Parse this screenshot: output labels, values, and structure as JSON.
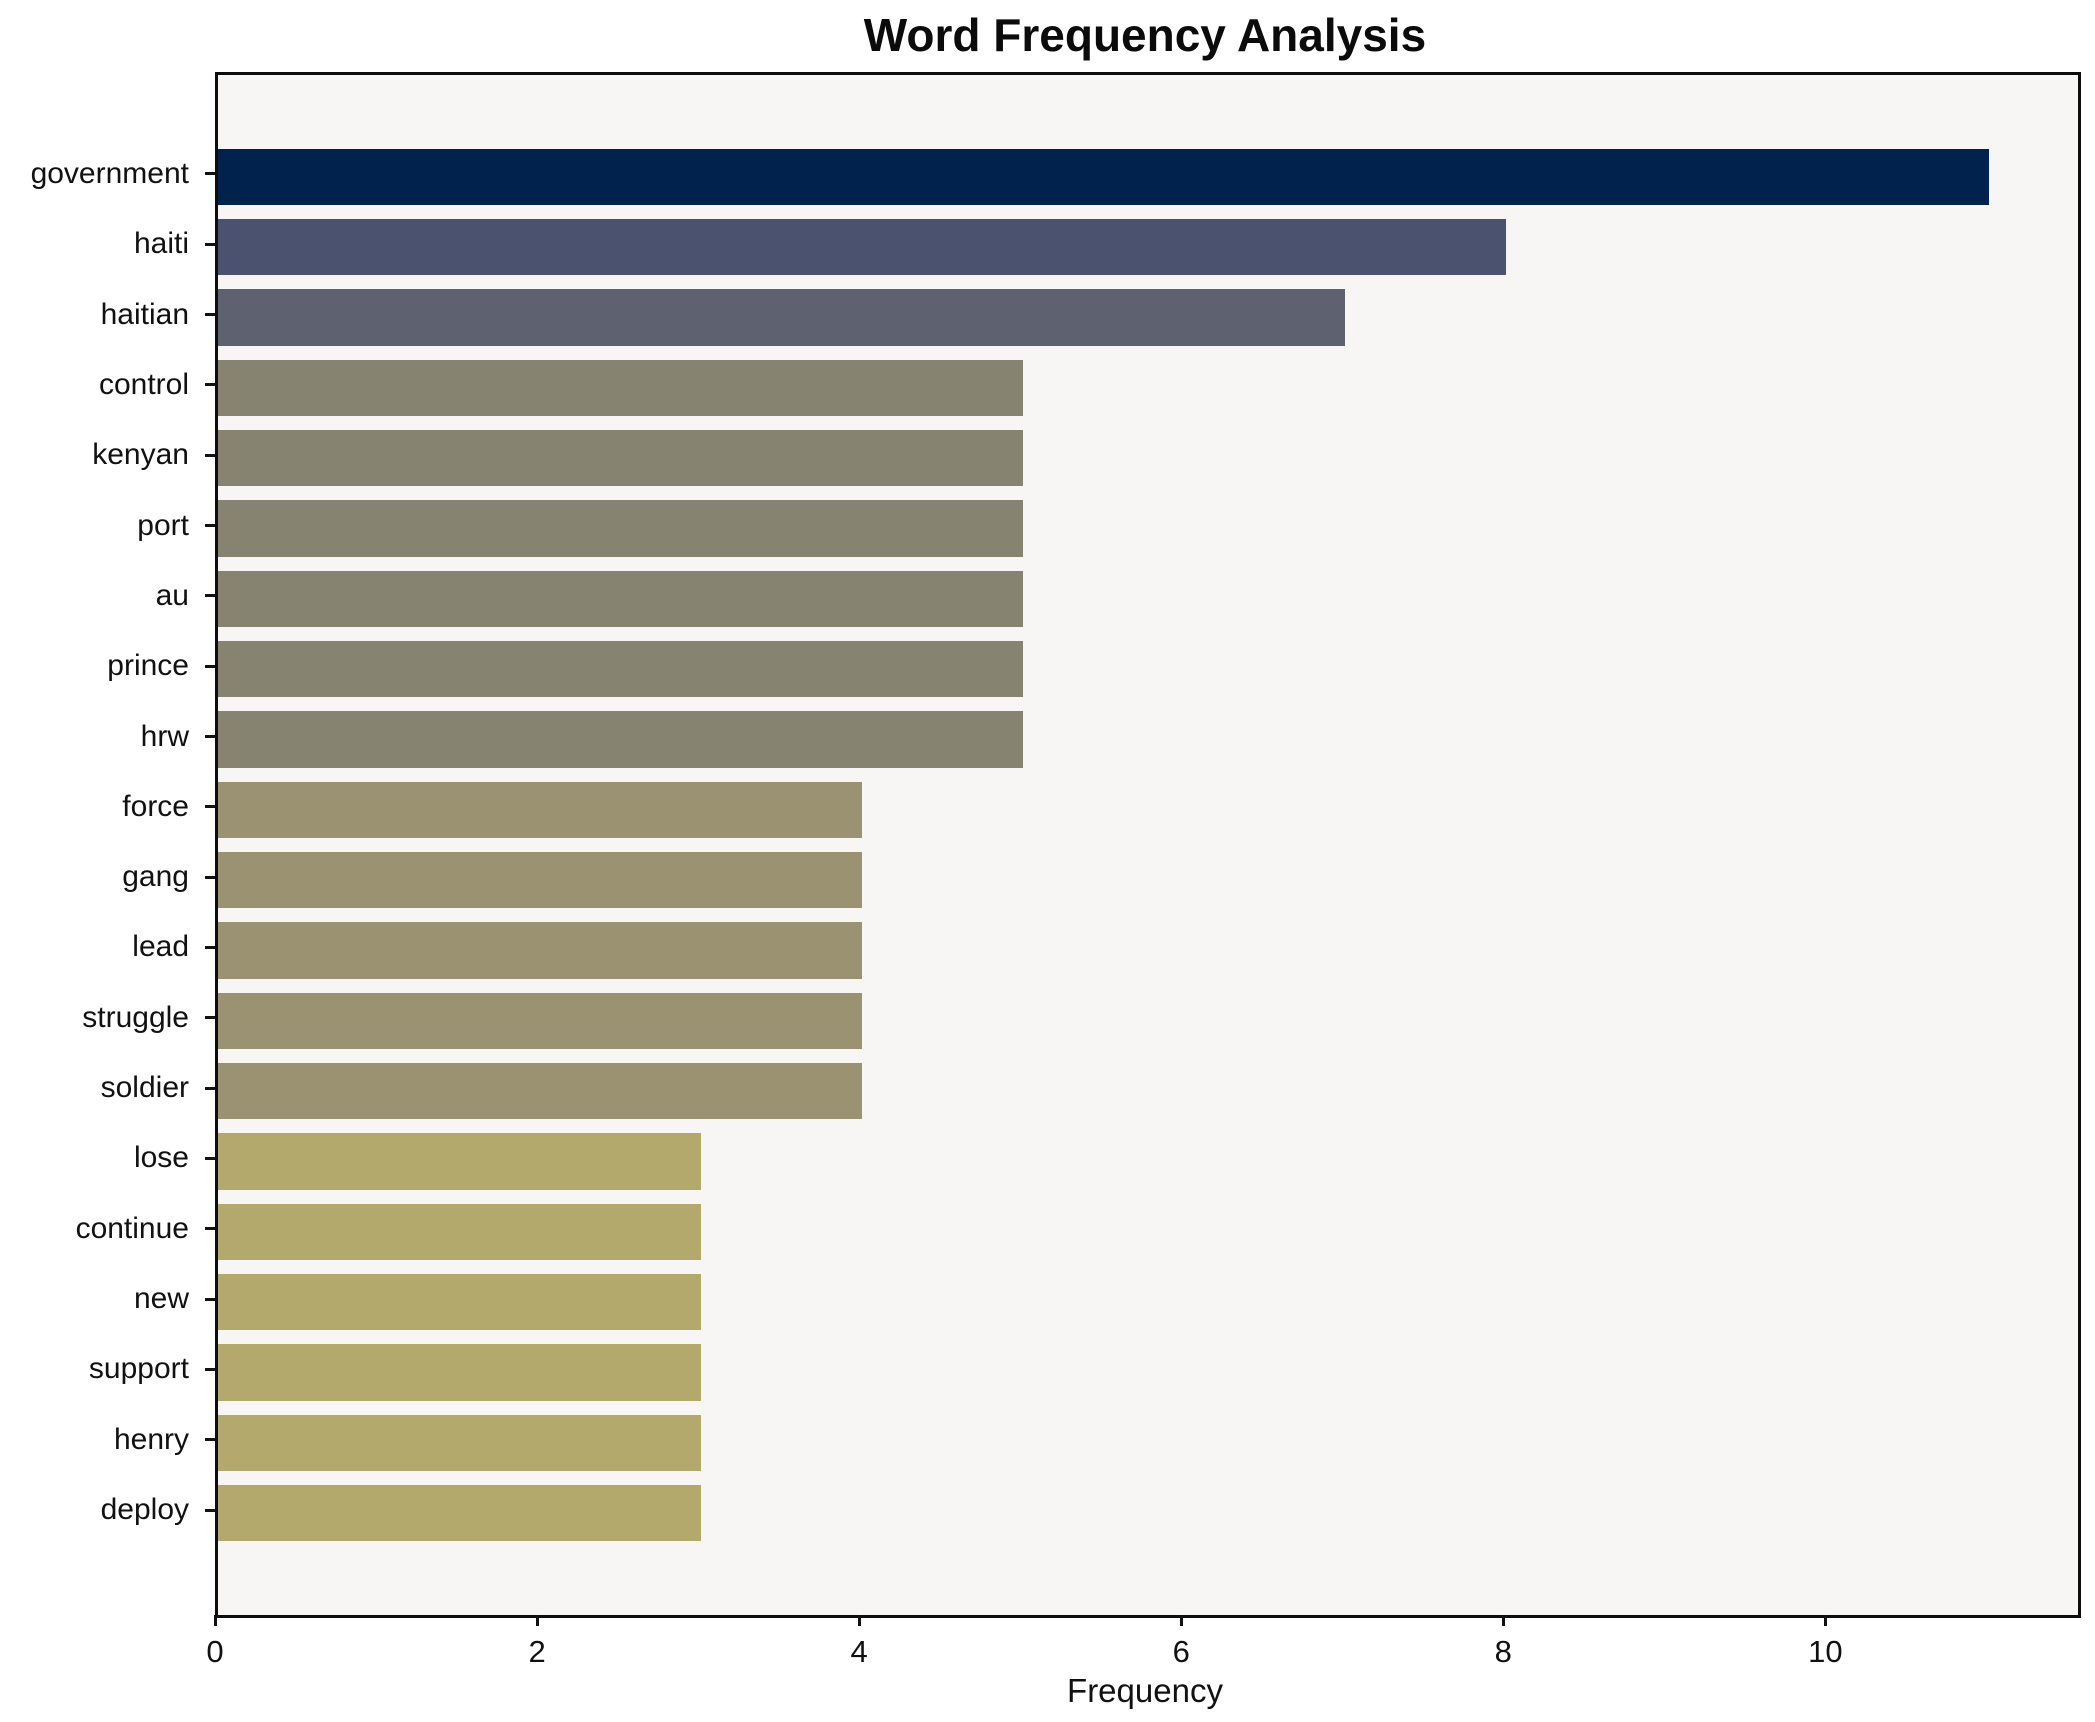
{
  "chart_data": {
    "type": "bar",
    "orientation": "horizontal",
    "title": "Word Frequency Analysis",
    "xlabel": "Frequency",
    "ylabel": "",
    "categories": [
      "government",
      "haiti",
      "haitian",
      "control",
      "kenyan",
      "port",
      "au",
      "prince",
      "hrw",
      "force",
      "gang",
      "lead",
      "struggle",
      "soldier",
      "lose",
      "continue",
      "new",
      "support",
      "henry",
      "deploy"
    ],
    "values": [
      11,
      8,
      7,
      5,
      5,
      5,
      5,
      5,
      5,
      4,
      4,
      4,
      4,
      4,
      3,
      3,
      3,
      3,
      3,
      3
    ],
    "bar_colors": [
      "#01224C",
      "#4A5270",
      "#5E6170",
      "#868471",
      "#868471",
      "#868471",
      "#868471",
      "#868471",
      "#868471",
      "#9A9271",
      "#9A9271",
      "#9A9271",
      "#9A9271",
      "#9A9271",
      "#B3A96C",
      "#B3A96C",
      "#B3A96C",
      "#B3A96C",
      "#B3A96C",
      "#B3A96C"
    ],
    "xlim": [
      0,
      11.55
    ],
    "xticks": [
      0,
      2,
      4,
      6,
      8,
      10
    ],
    "grid": false,
    "legend": null,
    "plot_background": "#f7f6f4",
    "figure_background": "#ffffff"
  }
}
